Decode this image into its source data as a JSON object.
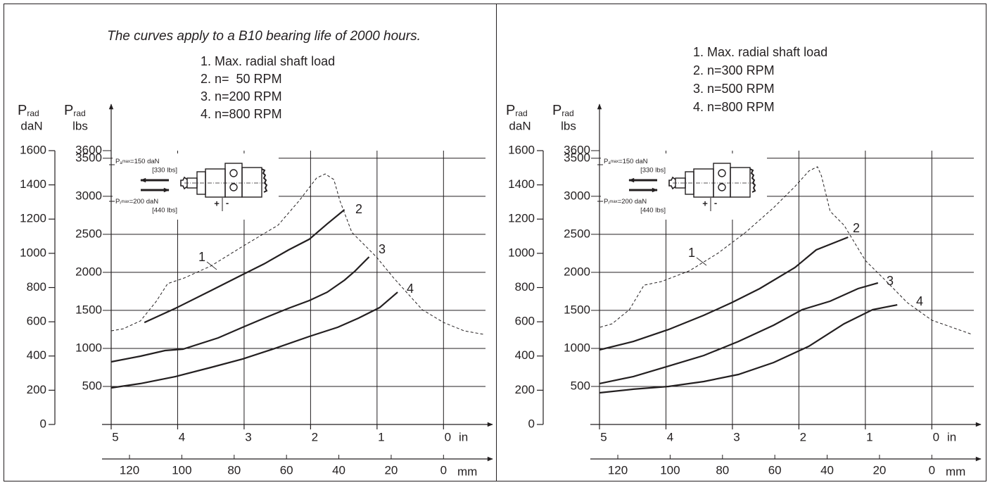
{
  "chart_data": [
    {
      "type": "line",
      "title": "The curves apply to a B10 bearing life of 2000 hours.",
      "y_label": {
        "symbol": "P",
        "sub": "rad",
        "unit": "daN"
      },
      "y2_label": {
        "symbol": "P",
        "sub": "rad",
        "unit": "lbs"
      },
      "x_unit": "in",
      "x2_unit": "mm",
      "xlim": [
        5,
        -0.6
      ],
      "xticks": [
        5,
        4,
        3,
        2,
        1,
        0
      ],
      "x2lim": [
        127,
        -15.24
      ],
      "x2ticks": [
        120,
        100,
        80,
        60,
        40,
        20,
        0
      ],
      "ylim": [
        0,
        1600
      ],
      "yticks": [
        0,
        200,
        400,
        600,
        800,
        1000,
        1200,
        1400,
        1600
      ],
      "y2lim": [
        0,
        3600
      ],
      "y2ticks": [
        500,
        1000,
        1500,
        2000,
        2500,
        3000,
        3500,
        3600
      ],
      "grid": true,
      "inset": {
        "axial": {
          "symbol": "P",
          "sub": "a",
          "max": "max",
          "text": "=150 daN",
          "alt": "[330 lbs]"
        },
        "radial": {
          "symbol": "P",
          "sub": "r",
          "max": "max",
          "text": "=200 daN",
          "alt": "[440 lbs]"
        },
        "plus": "+",
        "minus": "-"
      },
      "series": [
        {
          "name": "1. Max. radial shaft load",
          "label": "1",
          "color": "#231f20",
          "dashed": true,
          "x": [
            5.0,
            4.82,
            4.56,
            4.32,
            4.15,
            3.9,
            3.5,
            3.02,
            2.49,
            2.17,
            1.91,
            1.78,
            1.65,
            1.56,
            1.38,
            1.01,
            0.75,
            0.32,
            0.0,
            -0.31,
            -0.6
          ],
          "values": [
            547,
            559,
            605,
            720,
            823,
            856,
            926,
            1041,
            1164,
            1308,
            1440,
            1464,
            1431,
            1308,
            1123,
            979,
            856,
            671,
            596,
            547,
            527
          ]
        },
        {
          "name": "2. n=  50 RPM",
          "label": "2",
          "color": "#231f20",
          "dashed": false,
          "x": [
            4.5,
            4.03,
            3.5,
            3.02,
            2.7,
            2.33,
            2.02,
            1.75,
            1.49
          ],
          "values": [
            596,
            679,
            782,
            876,
            938,
            1020,
            1082,
            1172,
            1255
          ]
        },
        {
          "name": "3. n=200 RPM",
          "label": "3",
          "color": "#231f20",
          "dashed": false,
          "x": [
            5.0,
            4.56,
            4.19,
            3.92,
            3.39,
            3.02,
            2.65,
            2.33,
            2.02,
            1.75,
            1.49,
            1.33,
            1.12
          ],
          "values": [
            366,
            399,
            432,
            440,
            506,
            568,
            629,
            679,
            724,
            773,
            843,
            897,
            979
          ]
        },
        {
          "name": "4. n=800 RPM",
          "label": "4",
          "color": "#231f20",
          "dashed": false,
          "x": [
            5.0,
            4.56,
            4.03,
            3.5,
            3.02,
            2.54,
            2.02,
            1.59,
            1.28,
            0.96,
            0.69
          ],
          "values": [
            214,
            239,
            280,
            333,
            383,
            444,
            514,
            568,
            621,
            683,
            773
          ]
        }
      ]
    },
    {
      "type": "line",
      "y_label": {
        "symbol": "P",
        "sub": "rad",
        "unit": "daN"
      },
      "y2_label": {
        "symbol": "P",
        "sub": "rad",
        "unit": "lbs"
      },
      "x_unit": "in",
      "x2_unit": "mm",
      "xlim": [
        5,
        -0.6
      ],
      "xticks": [
        5,
        4,
        3,
        2,
        1,
        0
      ],
      "x2lim": [
        127,
        -15.24
      ],
      "x2ticks": [
        120,
        100,
        80,
        60,
        40,
        20,
        0
      ],
      "ylim": [
        0,
        1600
      ],
      "yticks": [
        0,
        200,
        400,
        600,
        800,
        1000,
        1200,
        1400,
        1600
      ],
      "y2lim": [
        0,
        3600
      ],
      "y2ticks": [
        500,
        1000,
        1500,
        2000,
        2500,
        3000,
        3500,
        3600
      ],
      "grid": true,
      "inset": {
        "axial": {
          "symbol": "P",
          "sub": "a",
          "max": "max",
          "text": "=150 daN",
          "alt": "[330 lbs]"
        },
        "radial": {
          "symbol": "P",
          "sub": "r",
          "max": "max",
          "text": "=200 daN",
          "alt": "[440 lbs]"
        },
        "plus": "+",
        "minus": "-"
      },
      "series": [
        {
          "name": "1. Max. radial shaft load",
          "label": "1",
          "color": "#231f20",
          "dashed": true,
          "x": [
            4.99,
            4.81,
            4.55,
            4.33,
            4.07,
            3.65,
            3.22,
            2.8,
            2.38,
            2.06,
            1.85,
            1.72,
            1.66,
            1.53,
            1.32,
            1.0,
            0.68,
            0.37,
            0.0,
            -0.6
          ],
          "values": [
            568,
            588,
            671,
            814,
            835,
            897,
            1000,
            1123,
            1267,
            1390,
            1481,
            1506,
            1452,
            1246,
            1164,
            958,
            835,
            712,
            609,
            527
          ]
        },
        {
          "name": "2. n=300 RPM",
          "label": "2",
          "color": "#231f20",
          "dashed": false,
          "x": [
            5.0,
            4.49,
            3.96,
            3.43,
            3.01,
            2.59,
            2.06,
            1.74,
            1.26
          ],
          "values": [
            436,
            485,
            555,
            638,
            712,
            794,
            917,
            1020,
            1094
          ]
        },
        {
          "name": "3. n=500 RPM",
          "label": "3",
          "color": "#231f20",
          "dashed": false,
          "x": [
            5.0,
            4.49,
            3.96,
            3.43,
            2.91,
            2.38,
            1.95,
            1.53,
            1.11,
            0.81
          ],
          "values": [
            239,
            280,
            341,
            403,
            485,
            580,
            671,
            720,
            794,
            827
          ]
        },
        {
          "name": "4. n=800 RPM",
          "label": "4",
          "color": "#231f20",
          "dashed": false,
          "x": [
            5.0,
            4.49,
            3.96,
            3.43,
            2.91,
            2.38,
            1.85,
            1.32,
            0.89,
            0.52
          ],
          "values": [
            185,
            206,
            222,
            251,
            292,
            362,
            457,
            588,
            671,
            699
          ]
        }
      ]
    }
  ]
}
